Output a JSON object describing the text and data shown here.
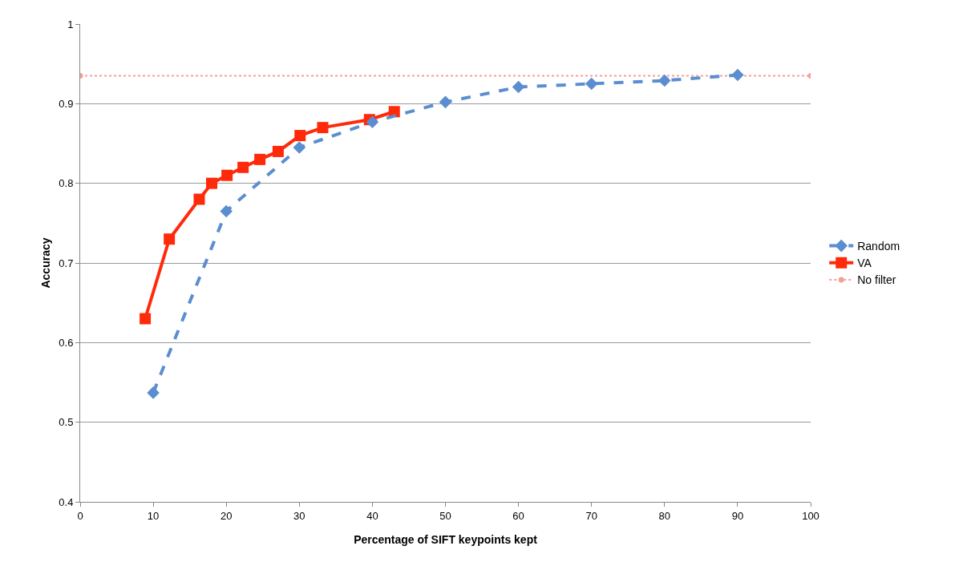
{
  "chart_data": {
    "type": "line",
    "xlabel": "Percentage of SIFT keypoints kept",
    "ylabel": "Accuracy",
    "xlim": [
      0,
      100
    ],
    "xticks": [
      0,
      10,
      20,
      30,
      40,
      50,
      60,
      70,
      80,
      90,
      100
    ],
    "ylim": [
      0.4,
      1
    ],
    "yticks": [
      0.4,
      0.5,
      0.6,
      0.7,
      0.8,
      0.9,
      1
    ],
    "grid": "y",
    "legend": "right",
    "series": [
      {
        "name": "Random",
        "color": "#5b8ed0",
        "line_style": "dashed",
        "marker": "diamond",
        "x": [
          10,
          20,
          30,
          40,
          50,
          60,
          70,
          80,
          90
        ],
        "values": [
          0.537,
          0.765,
          0.845,
          0.877,
          0.902,
          0.921,
          0.925,
          0.929,
          0.936
        ]
      },
      {
        "name": "VA",
        "color": "#ff2a0a",
        "line_style": "solid",
        "marker": "square",
        "x": [
          8.9,
          12.2,
          16.3,
          18,
          20.1,
          22.3,
          24.6,
          27.1,
          30.1,
          33.2,
          39.6,
          43
        ],
        "values": [
          0.63,
          0.73,
          0.78,
          0.8,
          0.81,
          0.82,
          0.83,
          0.84,
          0.86,
          0.87,
          0.88,
          0.89
        ]
      },
      {
        "name": "No filter",
        "color": "#f4a09a",
        "line_style": "dotted",
        "marker": "circle",
        "x": [
          0,
          100
        ],
        "values": [
          0.935,
          0.935
        ]
      }
    ]
  }
}
